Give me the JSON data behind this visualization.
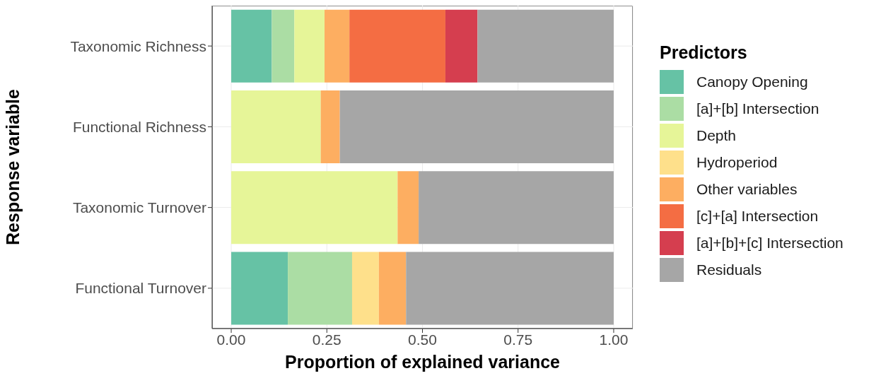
{
  "chart_data": {
    "type": "bar",
    "orientation": "horizontal",
    "stacked": true,
    "xlabel": "Proportion of explained variance",
    "ylabel": "Response variable",
    "legend_title": "Predictors",
    "categories": [
      "Taxonomic Richness",
      "Functional Richness",
      "Taxonomic Turnover",
      "Functional Turnover"
    ],
    "series": [
      {
        "name": "Canopy Opening",
        "color": "#66c2a5",
        "values": [
          0.106,
          0,
          0,
          0.148
        ]
      },
      {
        "name": "[a]+[b] Intersection",
        "color": "#abdda4",
        "values": [
          0.059,
          0,
          0,
          0.168
        ]
      },
      {
        "name": "Depth",
        "color": "#e6f598",
        "values": [
          0.079,
          0.234,
          0.435,
          0
        ]
      },
      {
        "name": "Hydroperiod",
        "color": "#fee08b",
        "values": [
          0,
          0,
          0,
          0.07
        ]
      },
      {
        "name": "Other variables",
        "color": "#fdae61",
        "values": [
          0.065,
          0.05,
          0.055,
          0.071
        ]
      },
      {
        "name": "[c]+[a] Intersection",
        "color": "#f46d43",
        "values": [
          0.251,
          0,
          0,
          0
        ]
      },
      {
        "name": "[a]+[b]+[c] Intersection",
        "color": "#d53e4f",
        "values": [
          0.084,
          0,
          0,
          0
        ]
      },
      {
        "name": "Residuals",
        "color": "#a6a6a6",
        "values": [
          0.356,
          0.716,
          0.51,
          0.543
        ]
      }
    ],
    "xlim": [
      -0.05,
      1.05
    ],
    "xticks": [
      {
        "value": 0,
        "label": "0.00"
      },
      {
        "value": 0.25,
        "label": "0.25"
      },
      {
        "value": 0.5,
        "label": "0.50"
      },
      {
        "value": 0.75,
        "label": "0.75"
      },
      {
        "value": 1,
        "label": "1.00"
      }
    ],
    "grid": true,
    "legend": "right"
  }
}
